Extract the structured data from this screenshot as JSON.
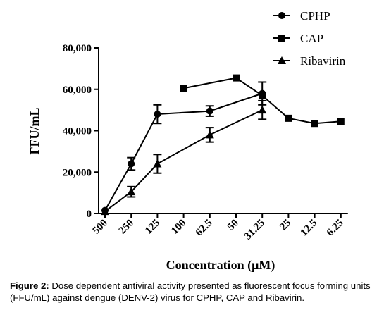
{
  "chart_data": {
    "type": "line",
    "title": "",
    "xlabel": "Concentration (μM)",
    "ylabel": "FFU/mL",
    "categories": [
      "500",
      "250",
      "125",
      "100",
      "62.5",
      "50",
      "31.25",
      "25",
      "12.5",
      "6.25"
    ],
    "ylim": [
      0,
      80000
    ],
    "yticks": [
      "0",
      "20,000",
      "40,000",
      "60,000",
      "80,000"
    ],
    "ytick_values": [
      0,
      20000,
      40000,
      60000,
      80000
    ],
    "legend_position": "top-right",
    "series": [
      {
        "name": "CPHP",
        "marker": "circle",
        "values": [
          1500,
          24000,
          48000,
          null,
          49500,
          null,
          58000,
          null,
          null,
          null
        ],
        "errors": [
          null,
          3000,
          4500,
          null,
          2500,
          null,
          5500,
          null,
          null,
          null
        ]
      },
      {
        "name": "CAP",
        "marker": "square",
        "values": [
          null,
          null,
          null,
          60500,
          null,
          65500,
          57000,
          46000,
          43500,
          44500
        ],
        "errors": [
          null,
          null,
          null,
          null,
          null,
          null,
          null,
          null,
          null,
          null
        ]
      },
      {
        "name": "Ribavirin",
        "marker": "triangle",
        "values": [
          1000,
          10500,
          24000,
          null,
          38000,
          null,
          50000,
          null,
          null,
          null
        ],
        "errors": [
          null,
          2500,
          4500,
          null,
          3500,
          null,
          4500,
          null,
          null,
          null
        ]
      }
    ]
  },
  "caption": {
    "label": "Figure 2:",
    "text": " Dose dependent antiviral activity presented as fluorescent focus forming units (FFU/mL) against dengue (DENV-2) virus for CPHP, CAP and Ribavirin."
  }
}
